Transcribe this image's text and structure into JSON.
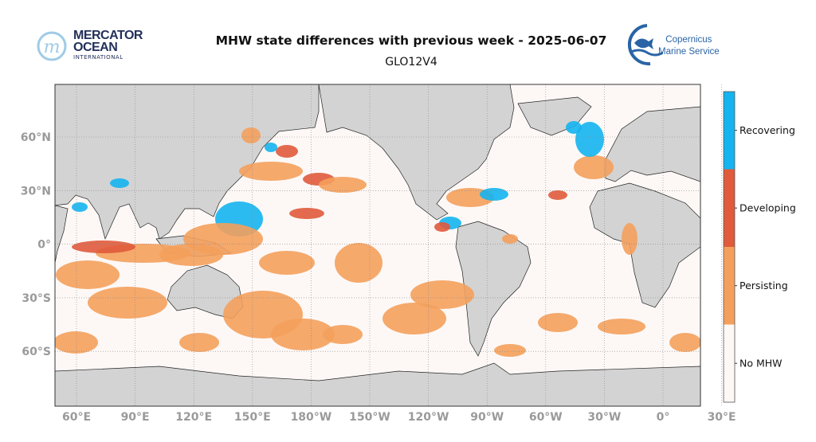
{
  "header": {
    "title": "MHW state differences with previous week - 2025-06-07",
    "subtitle": "GLO12V4",
    "mercator_logo": {
      "line1": "MERCATOR",
      "line2": "OCEAN",
      "line3": "INTERNATIONAL"
    },
    "copernicus_logo": {
      "line1": "Copernicus",
      "line2": "Marine Service"
    }
  },
  "map": {
    "lat_ticks": [
      "60°N",
      "30°N",
      "0°",
      "30°S",
      "60°S"
    ],
    "lon_ticks": [
      "60°E",
      "90°E",
      "120°E",
      "150°E",
      "180°W",
      "150°W",
      "120°W",
      "90°W",
      "60°W",
      "30°W",
      "0°",
      "30°E"
    ],
    "land_color": "#d3d3d3",
    "ocean_color": "#fdf8f6"
  },
  "legend": {
    "categories": [
      {
        "label": "Recovering",
        "color": "#14b4f0"
      },
      {
        "label": "Developing",
        "color": "#e05a3c"
      },
      {
        "label": "Persisting",
        "color": "#f4a05c"
      },
      {
        "label": "No MHW",
        "color": "#fdf8f6"
      }
    ]
  }
}
